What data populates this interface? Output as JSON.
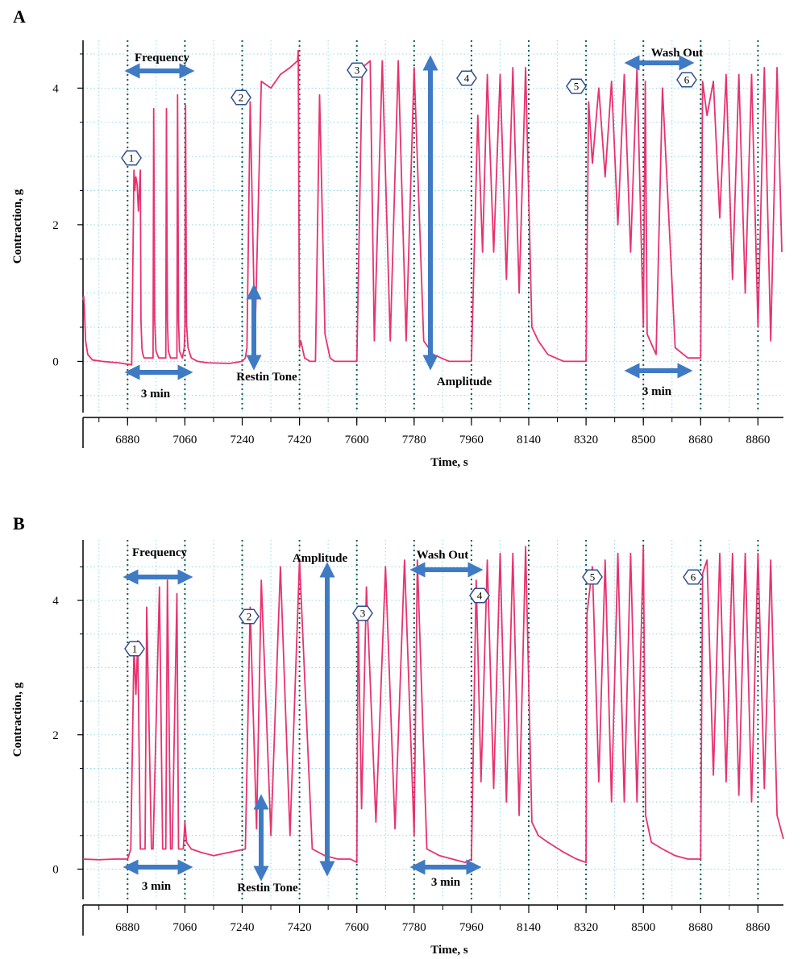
{
  "chart_data": [
    {
      "panel_label": "A",
      "type": "line",
      "xlabel": "Time, s",
      "ylabel": "Contraction, g",
      "xlim": [
        6740,
        8940
      ],
      "ylim": [
        -0.75,
        4.7
      ],
      "x_ticks": [
        6880,
        7060,
        7240,
        7420,
        7600,
        7780,
        7960,
        8140,
        8320,
        8500,
        8680,
        8860
      ],
      "y_ticks": [
        0,
        2,
        4
      ],
      "grid": true,
      "line_color": "#e8326e",
      "series": [
        {
          "x": [
            6740,
            6742,
            6744,
            6748,
            6755,
            6770,
            6800,
            6850,
            6893,
            6900,
            6903,
            6906,
            6910,
            6914,
            6920,
            6922,
            6925,
            6927,
            6932,
            6950,
            6960,
            6962,
            6965,
            6969,
            6978,
            6995,
            7000,
            7002,
            7005,
            7008,
            7015,
            7030,
            7035,
            7037,
            7040,
            7043,
            7052,
            7058,
            7060,
            7062,
            7065,
            7070,
            7080,
            7100,
            7130,
            7200,
            7240,
            7250,
            7255,
            7265,
            7280,
            7300,
            7330,
            7360,
            7390,
            7414,
            7416,
            7420,
            7424,
            7436,
            7453,
            7470,
            7483,
            7500,
            7516,
            7530,
            7556,
            7600,
            7617,
            7642,
            7655,
            7680,
            7705,
            7730,
            7755,
            7780,
            7810,
            7840,
            7890,
            7960,
            7980,
            7995,
            8010,
            8030,
            8050,
            8070,
            8090,
            8110,
            8130,
            8150,
            8170,
            8200,
            8250,
            8290,
            8320,
            8328,
            8340,
            8360,
            8380,
            8400,
            8420,
            8440,
            8460,
            8480,
            8500,
            8506,
            8512,
            8540,
            8560,
            8600,
            8640,
            8680,
            8686,
            8700,
            8720,
            8740,
            8760,
            8780,
            8800,
            8820,
            8840,
            8860,
            8880,
            8900,
            8920,
            8935
          ],
          "y": [
            0.9,
            0.95,
            0.8,
            0.3,
            0.1,
            0.02,
            0.0,
            -0.02,
            -0.05,
            2.8,
            2.5,
            2.7,
            2.6,
            2.2,
            2.8,
            0.6,
            0.2,
            0.12,
            0.05,
            0.05,
            0.05,
            3.7,
            0.6,
            0.15,
            0.05,
            0.05,
            0.05,
            3.7,
            0.6,
            0.15,
            0.05,
            0.05,
            0.05,
            3.9,
            0.6,
            0.15,
            0.05,
            0.2,
            0.5,
            3.75,
            0.55,
            0.2,
            0.05,
            0.0,
            -0.02,
            -0.03,
            0.0,
            0.05,
            0.2,
            3.8,
            0.3,
            4.1,
            4.0,
            4.2,
            4.3,
            4.4,
            4.55,
            0.2,
            0.3,
            0.05,
            0.0,
            0.0,
            3.9,
            0.4,
            0.05,
            0.0,
            0.0,
            0.0,
            4.3,
            4.4,
            0.3,
            4.4,
            0.3,
            4.4,
            0.3,
            4.3,
            0.3,
            0.1,
            0.0,
            0.0,
            3.6,
            1.6,
            4.2,
            1.6,
            4.2,
            1.2,
            4.3,
            1.0,
            4.3,
            0.5,
            0.3,
            0.1,
            0.0,
            0.0,
            0.0,
            3.8,
            2.9,
            4.0,
            2.7,
            4.1,
            2.0,
            4.2,
            1.6,
            4.3,
            0.5,
            4.1,
            0.4,
            0.1,
            4.0,
            0.2,
            0.05,
            0.05,
            4.1,
            3.6,
            4.1,
            2.1,
            4.2,
            1.2,
            4.2,
            1.0,
            4.2,
            0.5,
            4.3,
            0.3,
            4.3,
            1.6
          ]
        }
      ],
      "vlines": [
        6880,
        7060,
        7240,
        7420,
        7600,
        7780,
        7960,
        8140,
        8320,
        8500,
        8680,
        8860
      ],
      "annotations": [
        {
          "text": "Frequency",
          "x": 6970,
          "y": 4.5
        },
        {
          "text": "3 min",
          "x": 6970,
          "y": -0.25
        },
        {
          "text": "Restin Tone",
          "x": 7340,
          "y": -0.1
        },
        {
          "text": "Amplitude",
          "x": 7880,
          "y": -0.15
        },
        {
          "text": "Wash Out",
          "x": 8600,
          "y": 4.6
        },
        {
          "text": "3 min",
          "x": 8590,
          "y": -0.25
        }
      ],
      "markers": [
        "1",
        "2",
        "3",
        "4",
        "5",
        "6"
      ]
    },
    {
      "panel_label": "B",
      "type": "line",
      "xlabel": "Time, s",
      "ylabel": "Contraction, g",
      "xlim": [
        6740,
        8940
      ],
      "ylim": [
        -0.45,
        4.9
      ],
      "x_ticks": [
        6880,
        7060,
        7240,
        7420,
        7600,
        7780,
        7960,
        8140,
        8320,
        8500,
        8680,
        8860
      ],
      "y_ticks": [
        0,
        2,
        4
      ],
      "grid": true,
      "line_color": "#e8326e",
      "series": [
        {
          "x": [
            6740,
            6790,
            6840,
            6880,
            6890,
            6900,
            6906,
            6912,
            6920,
            6935,
            6940,
            6955,
            6960,
            6980,
            6990,
            7000,
            7005,
            7015,
            7020,
            7035,
            7040,
            7055,
            7060,
            7065,
            7080,
            7110,
            7150,
            7200,
            7250,
            7265,
            7285,
            7300,
            7330,
            7360,
            7390,
            7420,
            7460,
            7500,
            7540,
            7580,
            7600,
            7604,
            7615,
            7630,
            7660,
            7690,
            7720,
            7750,
            7780,
            7790,
            7820,
            7860,
            7900,
            7940,
            7960,
            7975,
            7990,
            8010,
            8030,
            8050,
            8070,
            8090,
            8110,
            8130,
            8150,
            8170,
            8200,
            8250,
            8290,
            8320,
            8323,
            8340,
            8360,
            8380,
            8400,
            8420,
            8440,
            8460,
            8480,
            8500,
            8507,
            8525,
            8560,
            8600,
            8640,
            8680,
            8686,
            8700,
            8720,
            8740,
            8760,
            8780,
            8800,
            8820,
            8840,
            8860,
            8880,
            8900,
            8920,
            8940
          ],
          "y": [
            0.15,
            0.14,
            0.15,
            0.15,
            0.3,
            3.3,
            2.6,
            3.4,
            0.3,
            0.3,
            3.9,
            0.3,
            0.3,
            4.2,
            0.3,
            0.3,
            4.3,
            0.3,
            0.3,
            4.1,
            0.3,
            0.3,
            0.7,
            0.4,
            0.3,
            0.25,
            0.2,
            0.25,
            0.3,
            3.9,
            0.6,
            4.3,
            0.5,
            4.5,
            0.5,
            4.6,
            0.3,
            0.2,
            0.15,
            0.15,
            0.1,
            3.8,
            0.9,
            4.2,
            0.7,
            4.5,
            0.6,
            4.6,
            0.5,
            4.6,
            0.3,
            0.2,
            0.15,
            0.1,
            0.15,
            4.3,
            1.3,
            4.6,
            1.2,
            4.7,
            1.0,
            4.7,
            0.8,
            4.8,
            0.7,
            0.5,
            0.4,
            0.25,
            0.15,
            0.1,
            3.8,
            4.5,
            1.3,
            4.6,
            1.0,
            4.7,
            1.0,
            4.7,
            1.0,
            4.8,
            0.8,
            0.4,
            0.3,
            0.2,
            0.15,
            0.15,
            4.4,
            4.6,
            1.4,
            4.7,
            1.3,
            4.7,
            1.1,
            4.7,
            1.0,
            4.7,
            1.2,
            4.6,
            0.8,
            0.45
          ]
        }
      ],
      "vlines": [
        6880,
        7060,
        7240,
        7420,
        7600,
        7780,
        7960,
        8140,
        8320,
        8500,
        8680,
        8860
      ],
      "annotations": [
        {
          "text": "Frequency",
          "x": 6980,
          "y": 4.8
        },
        {
          "text": "Amplitude",
          "x": 7500,
          "y": 4.7
        },
        {
          "text": "Wash Out",
          "x": 7900,
          "y": 4.85
        },
        {
          "text": "3 min",
          "x": 6980,
          "y": -0.22
        },
        {
          "text": "Restin Tone",
          "x": 7345,
          "y": -0.25
        },
        {
          "text": "3 min",
          "x": 7880,
          "y": -0.17
        }
      ],
      "markers": [
        "1",
        "2",
        "3",
        "4",
        "5",
        "6"
      ]
    }
  ]
}
